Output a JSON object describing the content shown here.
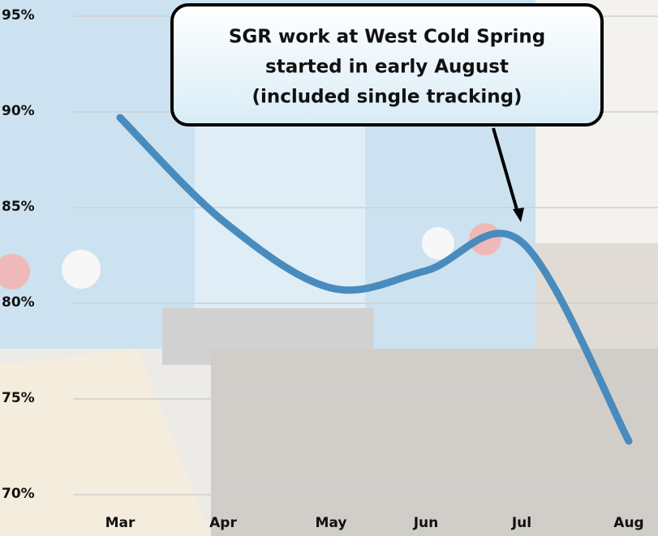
{
  "chart_data": {
    "type": "line",
    "annotation": [
      "SGR work at West Cold Spring",
      "started in early August",
      "(included single tracking)"
    ],
    "categories": [
      "Mar",
      "Apr",
      "May",
      "Jun",
      "Jul",
      "Aug"
    ],
    "values": [
      89.7,
      84.3,
      80.8,
      81.7,
      83.2,
      72.8
    ],
    "color": "#4a8bbd",
    "ylim": [
      70,
      95
    ],
    "yticks": [
      {
        "value": 70,
        "label": "70%"
      },
      {
        "value": 75,
        "label": "75%"
      },
      {
        "value": 80,
        "label": "80%"
      },
      {
        "value": 85,
        "label": "85%"
      },
      {
        "value": 90,
        "label": "90%"
      },
      {
        "value": 95,
        "label": "95%"
      }
    ],
    "grid": true
  }
}
